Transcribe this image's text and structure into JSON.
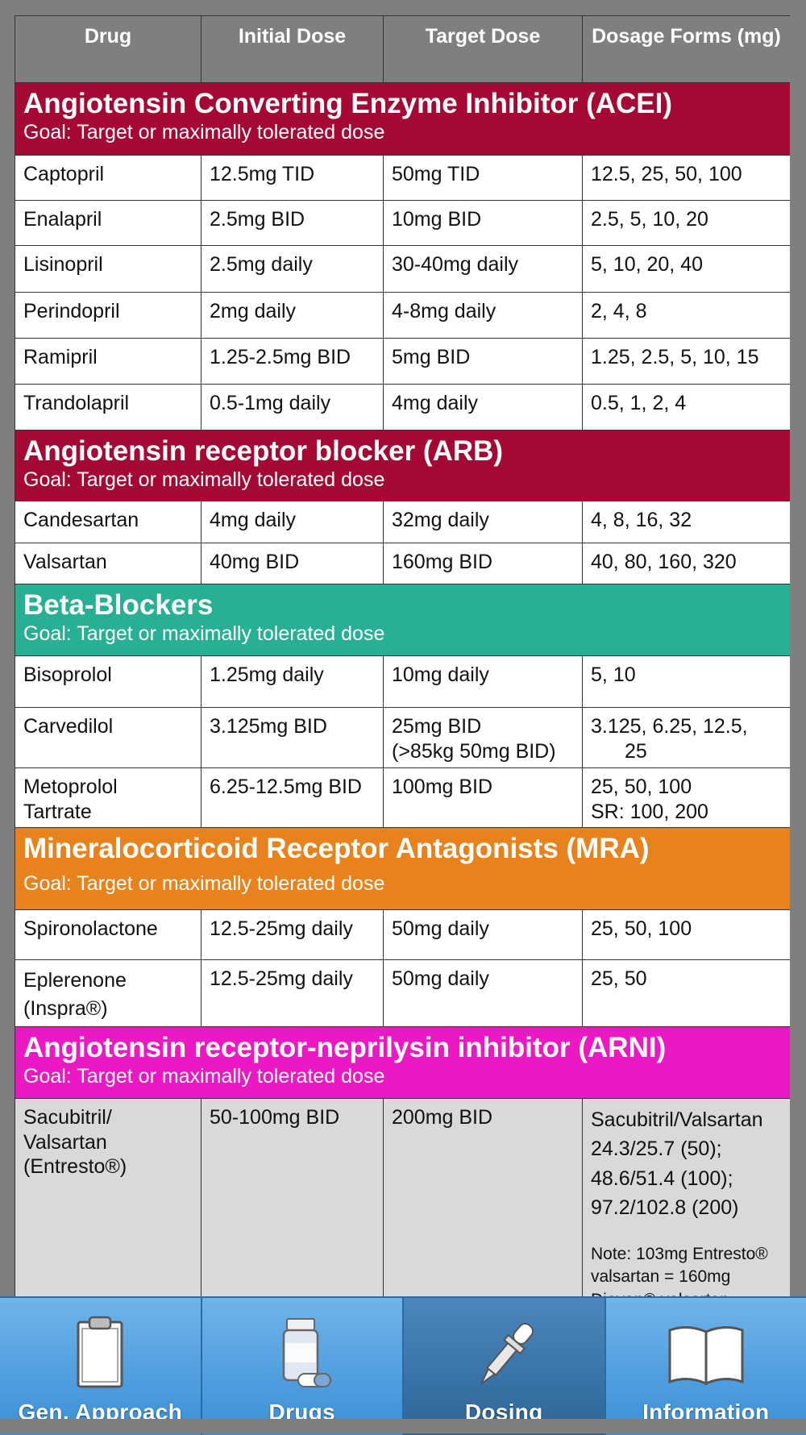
{
  "headers": [
    "Drug",
    "Initial Dose",
    "Target Dose",
    "Dosage Forms (mg)"
  ],
  "colors": {
    "acei": "#a60834",
    "arb": "#a60834",
    "bb": "#27b094",
    "mra": "#e8821c",
    "arni": "#ec18c4",
    "tabbar": "#4a9be0"
  },
  "sections": {
    "acei": {
      "title": "Angiotensin Converting Enzyme Inhibitor (ACEI)",
      "goal": "Goal: Target or maximally tolerated dose",
      "rows": [
        [
          "Captopril",
          "12.5mg TID",
          "50mg TID",
          "12.5, 25, 50, 100"
        ],
        [
          "Enalapril",
          "2.5mg BID",
          "10mg BID",
          "2.5, 5, 10, 20"
        ],
        [
          "Lisinopril",
          "2.5mg daily",
          "30-40mg daily",
          "5, 10, 20, 40"
        ],
        [
          "Perindopril",
          "2mg daily",
          "4-8mg daily",
          "2, 4, 8"
        ],
        [
          "Ramipril",
          "1.25-2.5mg BID",
          "5mg BID",
          "1.25, 2.5, 5, 10, 15"
        ],
        [
          "Trandolapril",
          "0.5-1mg daily",
          "4mg daily",
          "0.5, 1, 2, 4"
        ]
      ]
    },
    "arb": {
      "title": "Angiotensin receptor blocker (ARB)",
      "goal": "Goal: Target or maximally tolerated dose",
      "rows": [
        [
          "Candesartan",
          "4mg daily",
          "32mg daily",
          "4, 8, 16, 32"
        ],
        [
          "Valsartan",
          "40mg BID",
          "160mg BID",
          "40, 80, 160, 320"
        ]
      ]
    },
    "bb": {
      "title": "Beta-Blockers",
      "goal": "Goal: Target or maximally tolerated dose",
      "bisoprolol": [
        "Bisoprolol",
        "1.25mg daily",
        "10mg daily",
        "5, 10"
      ],
      "carvedilol": {
        "drug": "Carvedilol",
        "initial": "3.125mg BID",
        "target_1": "25mg BID",
        "target_2": "(>85kg 50mg BID)",
        "forms_1": "3.125, 6.25, 12.5,",
        "forms_2": "25"
      },
      "metoprolol": {
        "drug_1": "Metoprolol",
        "drug_2": "Tartrate",
        "initial": "6.25-12.5mg BID",
        "target": "100mg BID",
        "forms_1": "25, 50, 100",
        "forms_2": "SR: 100, 200"
      }
    },
    "mra": {
      "title": "Mineralocorticoid Receptor Antagonists (MRA)",
      "goal": "Goal: Target or maximally tolerated dose",
      "spironolactone": [
        "Spironolactone",
        "12.5-25mg daily",
        "50mg daily",
        "25, 50, 100"
      ],
      "eplerenone": {
        "drug_1": "Eplerenone",
        "drug_2": "(Inspra®)",
        "initial": "12.5-25mg daily",
        "target": "50mg daily",
        "forms": "25, 50"
      }
    },
    "arni": {
      "title": "Angiotensin receptor-neprilysin inhibitor  (ARNI)",
      "goal": "Goal: Target or maximally tolerated dose",
      "row": {
        "drug_1": "Sacubitril/",
        "drug_2": "Valsartan",
        "drug_3": "(Entresto®)",
        "initial": "50-100mg BID",
        "target": "200mg BID",
        "forms_1": "Sacubitril/Valsartan",
        "forms_2": "24.3/25.7 (50);",
        "forms_3": "48.6/51.4 (100);",
        "forms_4": "97.2/102.8 (200)",
        "note_1": "Note: 103mg Entresto®",
        "note_2": "valsartan = 160mg",
        "note_3": "Diovan® valsartan"
      }
    }
  },
  "tabs": [
    {
      "label": "Gen. Approach",
      "icon": "clipboard-icon"
    },
    {
      "label": "Drugs",
      "icon": "pill-bottle-icon"
    },
    {
      "label": "Dosing",
      "icon": "dropper-icon",
      "active": true
    },
    {
      "label": "Information",
      "icon": "book-icon"
    }
  ]
}
